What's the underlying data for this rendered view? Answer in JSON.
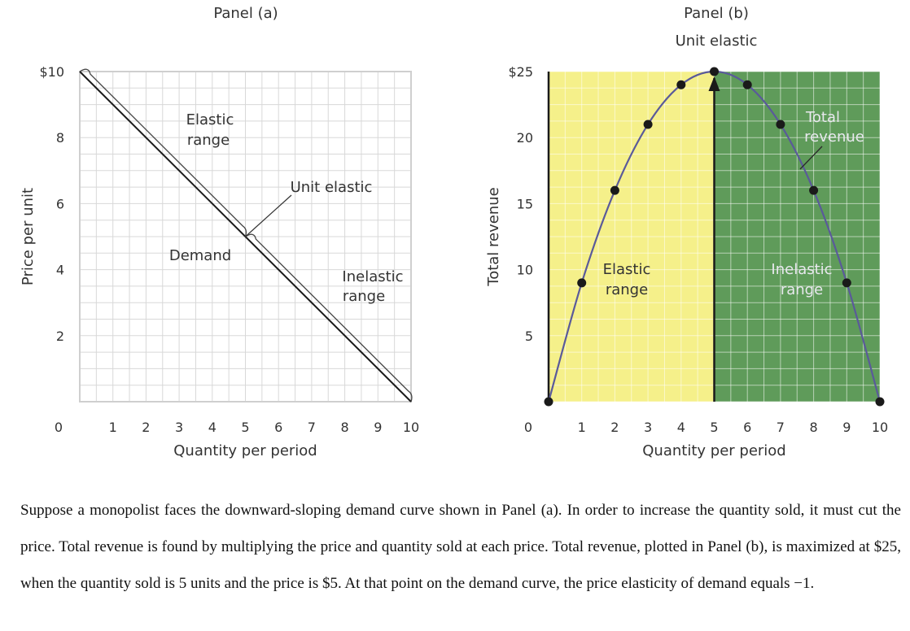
{
  "chart_data": [
    {
      "type": "line",
      "title": "Panel (a)",
      "xlabel": "Quantity per period",
      "ylabel": "Price per unit",
      "xlim": [
        0,
        10
      ],
      "ylim": [
        0,
        10
      ],
      "x_ticks": [
        "1",
        "2",
        "3",
        "4",
        "5",
        "6",
        "7",
        "8",
        "9",
        "10"
      ],
      "x_origin_label": "0",
      "y_ticks": [
        "$10",
        "8",
        "6",
        "4",
        "2"
      ],
      "y_tick_values": [
        10,
        8,
        6,
        4,
        2
      ],
      "grid": true,
      "series": [
        {
          "name": "Demand",
          "x": [
            0,
            10
          ],
          "y": [
            10,
            0
          ]
        }
      ],
      "annotations": {
        "elastic": [
          "Elastic",
          "range"
        ],
        "unit_elastic": "Unit elastic",
        "demand": "Demand",
        "inelastic": [
          "Inelastic",
          "range"
        ]
      }
    },
    {
      "type": "line",
      "title": "Panel (b)",
      "subtitle": "Unit elastic",
      "xlabel": "Quantity per period",
      "ylabel": "Total revenue",
      "xlim": [
        0,
        10
      ],
      "ylim": [
        0,
        25
      ],
      "x_ticks": [
        "1",
        "2",
        "3",
        "4",
        "5",
        "6",
        "7",
        "8",
        "9",
        "10"
      ],
      "x_origin_label": "0",
      "y_ticks": [
        "$25",
        "20",
        "15",
        "10",
        "5"
      ],
      "y_tick_values": [
        25,
        20,
        15,
        10,
        5
      ],
      "grid": true,
      "shaded_regions": [
        {
          "x": [
            0,
            5
          ],
          "color": "#f5f08a",
          "label": [
            "Elastic",
            "range"
          ]
        },
        {
          "x": [
            5,
            10
          ],
          "color": "#5f9b5a",
          "label": [
            "Inelastic",
            "range"
          ]
        }
      ],
      "series": [
        {
          "name": "Total revenue",
          "x": [
            0,
            1,
            2,
            3,
            4,
            5,
            6,
            7,
            8,
            9,
            10
          ],
          "y": [
            0,
            9,
            16,
            21,
            24,
            25,
            24,
            21,
            16,
            9,
            0
          ]
        }
      ],
      "annotations": {
        "total_revenue": [
          "Total",
          "revenue"
        ]
      },
      "colors": {
        "line": "#5a5a9a",
        "point": "#1a1a1a"
      }
    }
  ],
  "caption": "Suppose a monopolist faces the downward-sloping demand curve shown in Panel (a). In order to increase the quantity sold, it must cut the price. Total revenue is found by multiplying the price and quantity sold at each price. Total revenue, plotted in Panel (b), is maximized at $25, when the quantity sold is 5 units and the price is $5. At that point on the demand curve, the price elasticity of demand equals −1."
}
